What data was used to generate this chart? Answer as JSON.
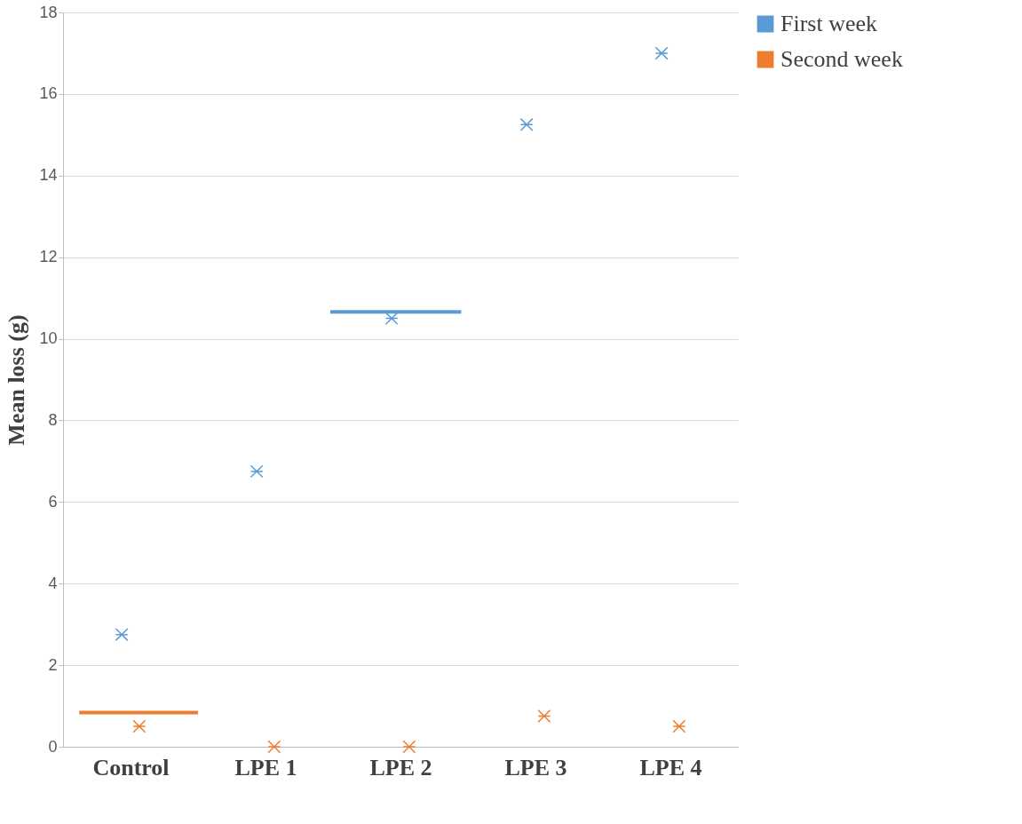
{
  "chart_data": {
    "type": "scatter",
    "ylabel": "Mean loss (g)",
    "categories": [
      "Control",
      "LPE 1",
      "LPE 2",
      "LPE 3",
      "LPE 4"
    ],
    "series": [
      {
        "name": "First week",
        "color": "#5b9bd5",
        "values": [
          2.75,
          6.75,
          10.5,
          15.25,
          17
        ]
      },
      {
        "name": "Second week",
        "color": "#ed7d31",
        "values": [
          0.5,
          0,
          0,
          0.75,
          0.5
        ]
      }
    ],
    "ref_lines": [
      {
        "axis": "y",
        "value": 10.66,
        "color": "#5b9bd5"
      },
      {
        "axis": "y",
        "value": 0.84,
        "color": "#ed7d31"
      }
    ],
    "ylim": [
      0,
      18
    ],
    "yticks": [
      0,
      2,
      4,
      6,
      8,
      10,
      12,
      14,
      16,
      18
    ],
    "grid": "y",
    "legend": "right",
    "marker": "cross"
  }
}
